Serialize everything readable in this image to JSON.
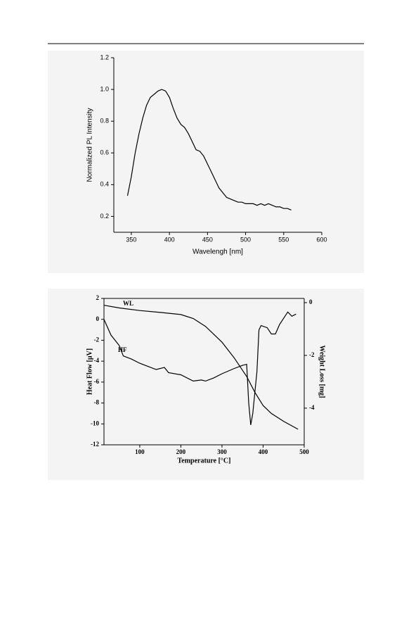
{
  "chart_data": [
    {
      "type": "line",
      "ylabel": "Normalized PL Intensity",
      "xlabel": "Wavelengh [nm]",
      "xlim": [
        327,
        600
      ],
      "xticks": [
        350,
        400,
        450,
        500,
        550,
        600
      ],
      "ylim": [
        0.1,
        1.2
      ],
      "yticks": [
        {
          "value": 0.2,
          "label": "0.2"
        },
        {
          "value": 0.4,
          "label": "0.4"
        },
        {
          "value": 0.6,
          "label": "0.6"
        },
        {
          "value": 0.8,
          "label": "0.8"
        },
        {
          "value": 1,
          "label": "1.0"
        },
        {
          "value": 1.2,
          "label": "1.2"
        }
      ],
      "series": [
        {
          "color": "#000000",
          "x": [
            345,
            350,
            355,
            360,
            365,
            370,
            375,
            380,
            385,
            390,
            395,
            400,
            405,
            410,
            415,
            420,
            425,
            430,
            435,
            440,
            445,
            450,
            455,
            460,
            465,
            470,
            475,
            480,
            485,
            490,
            495,
            500,
            505,
            510,
            515,
            520,
            525,
            530,
            535,
            540,
            545,
            550,
            555,
            560
          ],
          "values": [
            0.33,
            0.45,
            0.6,
            0.72,
            0.82,
            0.9,
            0.95,
            0.97,
            0.99,
            1.0,
            0.99,
            0.95,
            0.88,
            0.82,
            0.78,
            0.76,
            0.72,
            0.67,
            0.62,
            0.61,
            0.58,
            0.53,
            0.48,
            0.43,
            0.38,
            0.35,
            0.32,
            0.31,
            0.3,
            0.29,
            0.29,
            0.28,
            0.28,
            0.28,
            0.27,
            0.28,
            0.27,
            0.28,
            0.27,
            0.26,
            0.26,
            0.25,
            0.25,
            0.24
          ]
        }
      ]
    },
    {
      "type": "line",
      "xlabel": "Temperature [°C]",
      "ylabel": "Heat Flow [μV]",
      "y2label": "Weight Loss [mg]",
      "xlim": [
        13,
        500
      ],
      "xticks": [
        100,
        200,
        300,
        400,
        500
      ],
      "ylim": [
        -12,
        2
      ],
      "yticks": [
        -12,
        -10,
        -8,
        -6,
        -4,
        -2,
        0,
        2
      ],
      "y2lim": [
        -5.39,
        0.16
      ],
      "y2ticks": [
        -4,
        -2,
        0
      ],
      "series": [
        {
          "name": "WL",
          "color": "#000000",
          "axis": "y2",
          "x": [
            13,
            50,
            100,
            150,
            200,
            230,
            260,
            300,
            330,
            360,
            380,
            400,
            420,
            450,
            485
          ],
          "values": [
            -0.1,
            -0.2,
            -0.3,
            -0.37,
            -0.45,
            -0.6,
            -0.9,
            -1.5,
            -2.1,
            -2.8,
            -3.4,
            -3.9,
            -4.2,
            -4.5,
            -4.8
          ]
        },
        {
          "name": "HF",
          "color": "#000000",
          "x": [
            13,
            30,
            50,
            60,
            80,
            100,
            120,
            140,
            160,
            170,
            200,
            230,
            250,
            260,
            280,
            300,
            330,
            350,
            360,
            365,
            370,
            375,
            385,
            390,
            395,
            410,
            420,
            430,
            440,
            460,
            470,
            480
          ],
          "values": [
            0,
            -1.5,
            -2.5,
            -3.5,
            -3.8,
            -4.2,
            -4.5,
            -4.8,
            -4.6,
            -5.1,
            -5.3,
            -5.9,
            -5.8,
            -5.9,
            -5.6,
            -5.2,
            -4.7,
            -4.4,
            -4.3,
            -8,
            -10.1,
            -9,
            -5,
            -1,
            -0.6,
            -0.8,
            -1.4,
            -1.4,
            -0.5,
            0.7,
            0.3,
            0.5
          ]
        }
      ]
    }
  ]
}
